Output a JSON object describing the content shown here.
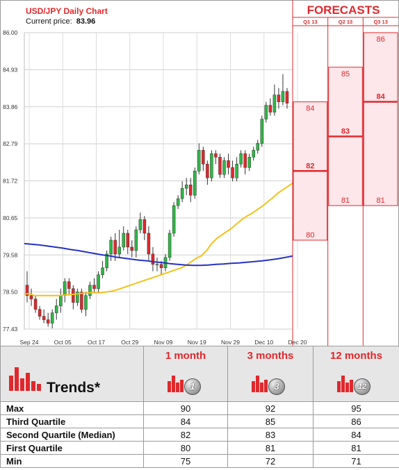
{
  "colors": {
    "up": "#2fb845",
    "down": "#e0282c",
    "ma_short": "#f2c218",
    "ma_long": "#2431c4",
    "accent": "#e0282c",
    "forecast_fill": "#fde7ea",
    "forecast_line": "#e0282c"
  },
  "chart_data": {
    "type": "candlestick",
    "title": "USD/JPY Daily Chart",
    "current_price_label": "Current price:",
    "current_price": "83.96",
    "ylim": [
      77.43,
      86.0
    ],
    "y_ticks": [
      "86.00",
      "84.93",
      "83.86",
      "82.79",
      "81.72",
      "80.65",
      "79.58",
      "78.50",
      "77.43"
    ],
    "x_ticks": [
      "Sep 24",
      "Oct 05",
      "Oct 17",
      "Oct 29",
      "Nov 09",
      "Nov 19",
      "Nov 29",
      "Dec 10",
      "Dec 20"
    ],
    "candles": [
      [
        78.7,
        78.4,
        79.1,
        78.2
      ],
      [
        78.4,
        78.3,
        78.6,
        78.1
      ],
      [
        78.3,
        78.0,
        78.4,
        77.9
      ],
      [
        78.0,
        77.8,
        78.1,
        77.7
      ],
      [
        77.8,
        77.7,
        78.0,
        77.6
      ],
      [
        77.7,
        77.6,
        77.9,
        77.5
      ],
      [
        77.6,
        77.9,
        78.0,
        77.45
      ],
      [
        77.9,
        78.1,
        78.3,
        77.7
      ],
      [
        78.1,
        78.4,
        78.6,
        77.9
      ],
      [
        78.4,
        78.8,
        78.9,
        78.2
      ],
      [
        78.8,
        78.6,
        78.9,
        78.4
      ],
      [
        78.6,
        78.2,
        78.7,
        78.0
      ],
      [
        78.2,
        78.5,
        78.6,
        78.1
      ],
      [
        78.5,
        78.0,
        78.6,
        77.9
      ],
      [
        78.0,
        78.4,
        78.5,
        77.8
      ],
      [
        78.4,
        78.7,
        78.8,
        78.3
      ],
      [
        78.7,
        78.6,
        78.9,
        78.5
      ],
      [
        78.6,
        79.0,
        79.1,
        78.5
      ],
      [
        79.0,
        79.2,
        79.4,
        78.9
      ],
      [
        79.2,
        79.6,
        79.7,
        79.1
      ],
      [
        79.6,
        80.0,
        80.1,
        79.4
      ],
      [
        80.0,
        79.6,
        80.2,
        79.4
      ],
      [
        79.6,
        79.8,
        80.3,
        79.5
      ],
      [
        79.8,
        80.2,
        80.4,
        79.7
      ],
      [
        80.2,
        79.8,
        80.3,
        79.6
      ],
      [
        79.8,
        79.7,
        80.0,
        79.5
      ],
      [
        79.7,
        80.3,
        80.4,
        79.5
      ],
      [
        80.3,
        80.6,
        80.8,
        80.2
      ],
      [
        80.6,
        80.2,
        80.7,
        80.0
      ],
      [
        80.2,
        79.6,
        80.4,
        79.4
      ],
      [
        79.6,
        79.3,
        79.8,
        79.1
      ],
      [
        79.3,
        79.3,
        79.5,
        79.1
      ],
      [
        79.3,
        79.2,
        79.4,
        79.0
      ],
      [
        79.2,
        79.5,
        79.6,
        79.1
      ],
      [
        79.5,
        80.2,
        80.3,
        79.4
      ],
      [
        80.2,
        81.0,
        81.1,
        80.1
      ],
      [
        81.0,
        81.2,
        81.3,
        80.9
      ],
      [
        81.2,
        81.5,
        81.7,
        81.1
      ],
      [
        81.5,
        81.6,
        81.8,
        81.3
      ],
      [
        81.6,
        81.3,
        81.8,
        81.1
      ],
      [
        81.3,
        82.0,
        82.1,
        81.2
      ],
      [
        82.0,
        82.6,
        82.8,
        81.9
      ],
      [
        82.6,
        82.2,
        82.7,
        82.0
      ],
      [
        82.2,
        81.8,
        82.3,
        81.6
      ],
      [
        81.8,
        82.5,
        82.6,
        81.7
      ],
      [
        82.5,
        82.4,
        82.6,
        82.2
      ],
      [
        82.4,
        81.9,
        82.5,
        81.8
      ],
      [
        81.9,
        82.3,
        82.4,
        81.8
      ],
      [
        82.3,
        82.1,
        82.5,
        81.9
      ],
      [
        82.1,
        81.8,
        82.3,
        81.7
      ],
      [
        81.8,
        82.2,
        82.4,
        81.7
      ],
      [
        82.2,
        82.5,
        82.6,
        82.1
      ],
      [
        82.5,
        82.1,
        82.6,
        81.9
      ],
      [
        82.1,
        82.4,
        82.5,
        82.0
      ],
      [
        82.4,
        82.6,
        82.7,
        82.3
      ],
      [
        82.6,
        82.8,
        82.9,
        82.5
      ],
      [
        82.8,
        83.5,
        83.6,
        82.7
      ],
      [
        83.5,
        83.9,
        84.0,
        83.4
      ],
      [
        83.9,
        83.7,
        84.1,
        83.6
      ],
      [
        83.7,
        84.2,
        84.5,
        83.6
      ],
      [
        84.2,
        84.0,
        84.4,
        83.8
      ],
      [
        84.0,
        84.3,
        84.8,
        83.9
      ],
      [
        84.3,
        83.96,
        84.4,
        83.8
      ]
    ],
    "ma_short": [
      78.45,
      78.45,
      78.4,
      78.4,
      78.4,
      78.4,
      78.4,
      78.4,
      78.42,
      78.43,
      78.44,
      78.46,
      78.47,
      78.48,
      78.48,
      78.48,
      78.5,
      78.52,
      78.55,
      78.6,
      78.65,
      78.7,
      78.75,
      78.8,
      78.85,
      78.9,
      78.95,
      79.0,
      79.05,
      79.1,
      79.15,
      79.2,
      79.28,
      79.38,
      79.48,
      79.55,
      79.7,
      79.9,
      80.05,
      80.15,
      80.25,
      80.35,
      80.48,
      80.6,
      80.7,
      80.78,
      80.88,
      80.98,
      81.1,
      81.22,
      81.35,
      81.45,
      81.55,
      81.65
    ],
    "ma_short_start": 0,
    "ma_long": [
      79.9,
      79.88,
      79.86,
      79.83,
      79.8,
      79.77,
      79.73,
      79.7,
      79.66,
      79.62,
      79.58,
      79.55,
      79.51,
      79.48,
      79.45,
      79.42,
      79.4,
      79.37,
      79.35,
      79.32,
      79.3,
      79.28,
      79.27,
      79.27,
      79.28,
      79.3,
      79.31,
      79.33,
      79.34,
      79.36,
      79.38,
      79.4,
      79.43,
      79.46,
      79.5,
      79.54
    ],
    "ma_long_start": 0,
    "forecast_header": "FORECASTS",
    "forecast_quarters": [
      "Q1 13",
      "Q2 13",
      "Q3 13"
    ],
    "forecasts": [
      {
        "q1": "80",
        "median": "82",
        "q3": "84",
        "q1_v": 80.0,
        "median_v": 82.0,
        "q3_v": 84.0
      },
      {
        "q1": "81",
        "median": "83",
        "q3": "85",
        "q1_v": 81.0,
        "median_v": 83.0,
        "q3_v": 85.0
      },
      {
        "q1": "81",
        "median": "84",
        "q3": "86",
        "q1_v": 81.0,
        "median_v": 84.0,
        "q3_v": 86.0
      }
    ]
  },
  "trends": {
    "title": "Trends*",
    "periods": [
      {
        "label": "1 month",
        "badge": "1"
      },
      {
        "label": "3 months",
        "badge": "3"
      },
      {
        "label": "12 months",
        "badge": "12"
      }
    ],
    "rows": [
      {
        "label": "Max",
        "values": [
          "90",
          "92",
          "95"
        ]
      },
      {
        "label": "Third Quartile",
        "values": [
          "84",
          "85",
          "86"
        ]
      },
      {
        "label": "Second Quartile (Median)",
        "values": [
          "82",
          "83",
          "84"
        ]
      },
      {
        "label": "First Quartile",
        "values": [
          "80",
          "81",
          "81"
        ]
      },
      {
        "label": "Min",
        "values": [
          "75",
          "72",
          "71"
        ]
      }
    ]
  }
}
